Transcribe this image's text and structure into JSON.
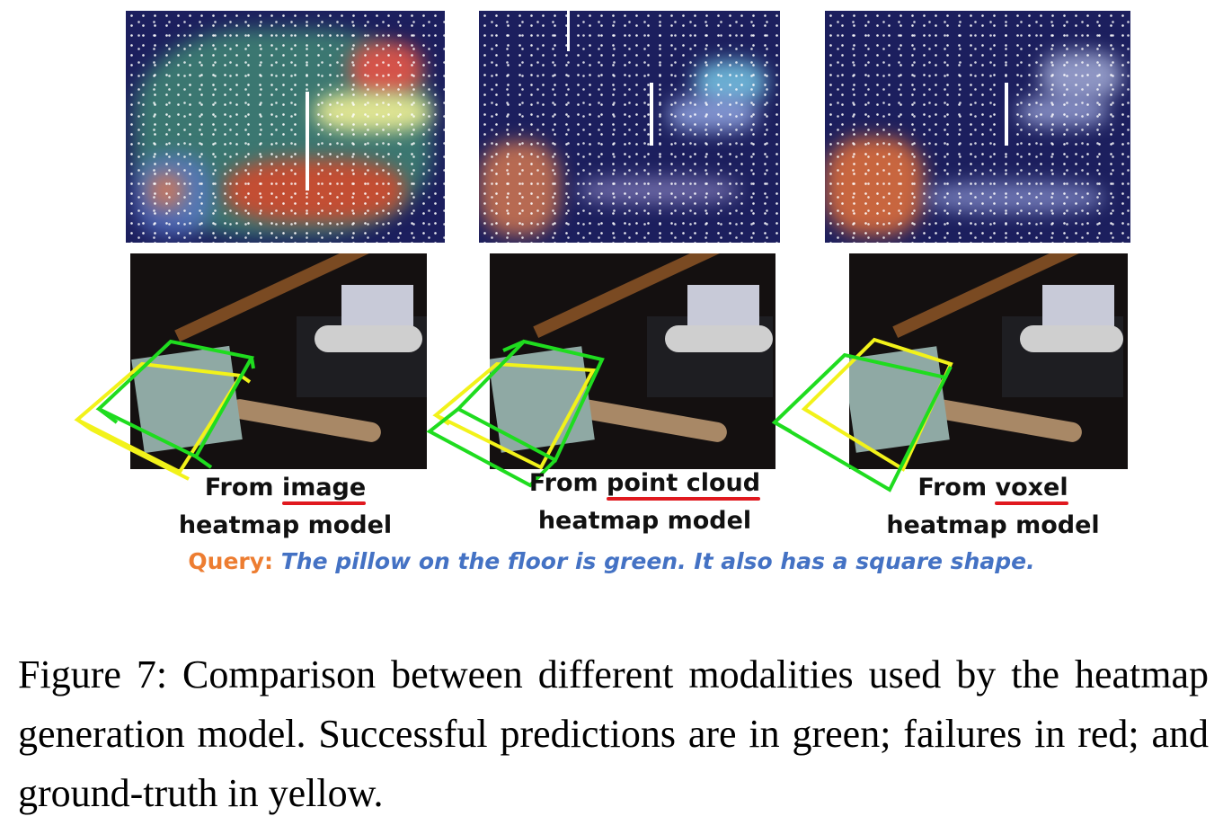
{
  "panels": [
    {
      "label_prefix": "From ",
      "keyword": "image",
      "label_line2": "heatmap model"
    },
    {
      "label_prefix": "From ",
      "keyword": "point cloud",
      "label_line2": "heatmap model"
    },
    {
      "label_prefix": "From ",
      "keyword": "voxel",
      "label_line2": "heatmap model"
    }
  ],
  "query": {
    "label": "Query:",
    "text": "The pillow on the floor is green. It also has a square shape."
  },
  "caption": "Figure 7: Comparison between different modalities used by the heatmap generation model. Successful predictions are in green; failures in red; and ground-truth in yellow.",
  "colors": {
    "success_box": "#1fdc1f",
    "ground_truth_box": "#f2f21a",
    "failure_underline": "#e0191f",
    "query_label": "#ed7d31",
    "query_text": "#4472c4"
  }
}
